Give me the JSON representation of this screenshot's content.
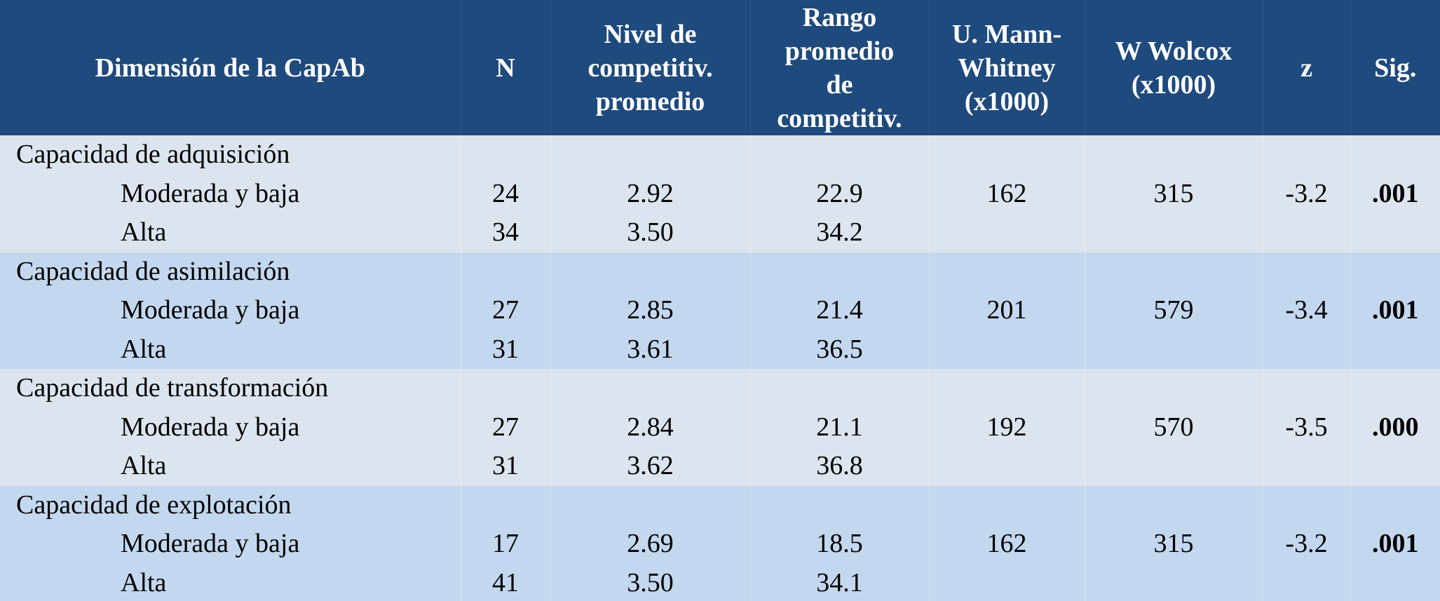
{
  "colors": {
    "header_bg": "#1f4a7d",
    "band_light": "#dce4ef",
    "band_mid": "#c3d8ef",
    "header_text": "#ffffff"
  },
  "headers": [
    {
      "lines": [
        "Dimensión de la CapAb"
      ]
    },
    {
      "lines": [
        "N"
      ]
    },
    {
      "lines": [
        "Nivel de",
        "competitiv.",
        "promedio"
      ]
    },
    {
      "lines": [
        "Rango",
        "promedio",
        "de",
        "competitiv."
      ]
    },
    {
      "lines": [
        "U. Mann-",
        "Whitney",
        "(x1000)"
      ]
    },
    {
      "lines": [
        "W Wolcox",
        "(x1000)"
      ]
    },
    {
      "lines": [
        "z"
      ]
    },
    {
      "lines": [
        "Sig."
      ]
    }
  ],
  "groups": [
    {
      "title": "Capacidad de adquisición",
      "rows": [
        {
          "label": "Moderada y baja",
          "n": "24",
          "nivel": "2.92",
          "rango": "22.9",
          "u": "162",
          "w": "315",
          "z": "-3.2",
          "sig": ".001"
        },
        {
          "label": "Alta",
          "n": "34",
          "nivel": "3.50",
          "rango": "34.2",
          "u": "",
          "w": "",
          "z": "",
          "sig": ""
        }
      ]
    },
    {
      "title": "Capacidad de asimilación",
      "rows": [
        {
          "label": "Moderada y baja",
          "n": "27",
          "nivel": "2.85",
          "rango": "21.4",
          "u": "201",
          "w": "579",
          "z": "-3.4",
          "sig": ".001"
        },
        {
          "label": "Alta",
          "n": "31",
          "nivel": "3.61",
          "rango": "36.5",
          "u": "",
          "w": "",
          "z": "",
          "sig": ""
        }
      ]
    },
    {
      "title": "Capacidad de transformación",
      "rows": [
        {
          "label": "Moderada y baja",
          "n": "27",
          "nivel": "2.84",
          "rango": "21.1",
          "u": "192",
          "w": "570",
          "z": "-3.5",
          "sig": ".000"
        },
        {
          "label": "Alta",
          "n": "31",
          "nivel": "3.62",
          "rango": "36.8",
          "u": "",
          "w": "",
          "z": "",
          "sig": ""
        }
      ]
    },
    {
      "title": "Capacidad de explotación",
      "rows": [
        {
          "label": "Moderada y baja",
          "n": "17",
          "nivel": "2.69",
          "rango": "18.5",
          "u": "162",
          "w": "315",
          "z": "-3.2",
          "sig": ".001"
        },
        {
          "label": "Alta",
          "n": "41",
          "nivel": "3.50",
          "rango": "34.1",
          "u": "",
          "w": "",
          "z": "",
          "sig": ""
        }
      ]
    }
  ]
}
